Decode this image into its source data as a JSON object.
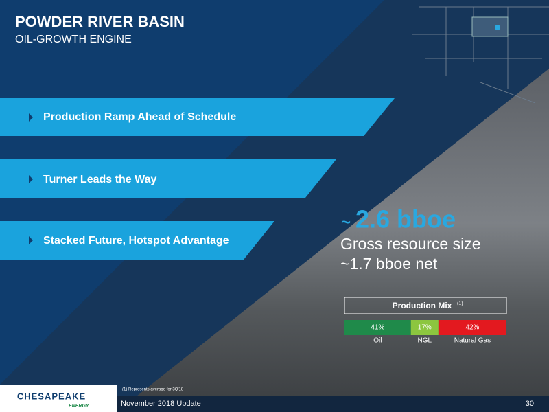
{
  "header": {
    "title": "POWDER RIVER BASIN",
    "subtitle": "OIL-GROWTH ENGINE"
  },
  "bullets": [
    "Production Ramp Ahead of Schedule",
    "Turner Leads the Way",
    "Stacked Future, Hotspot Advantage"
  ],
  "resource": {
    "tilde": "~",
    "headline": "2.6 bboe",
    "line1": "Gross resource size",
    "line2": "~1.7 bboe net"
  },
  "production_mix": {
    "title": "Production Mix",
    "note_marker": "(1)",
    "categories": [
      "Oil",
      "NGL",
      "Natural Gas"
    ],
    "values": [
      41,
      17,
      42
    ],
    "value_labels": [
      "41%",
      "17%",
      "42%"
    ],
    "colors": [
      "#1f8a4a",
      "#8cc63f",
      "#e3191f"
    ]
  },
  "footer": {
    "footnote": "(1)  Represents average for 3Q'18",
    "date": "November 2018 Update",
    "page": "30",
    "logo": "CHESAPEAKE",
    "logo_sub": "ENERGY"
  }
}
